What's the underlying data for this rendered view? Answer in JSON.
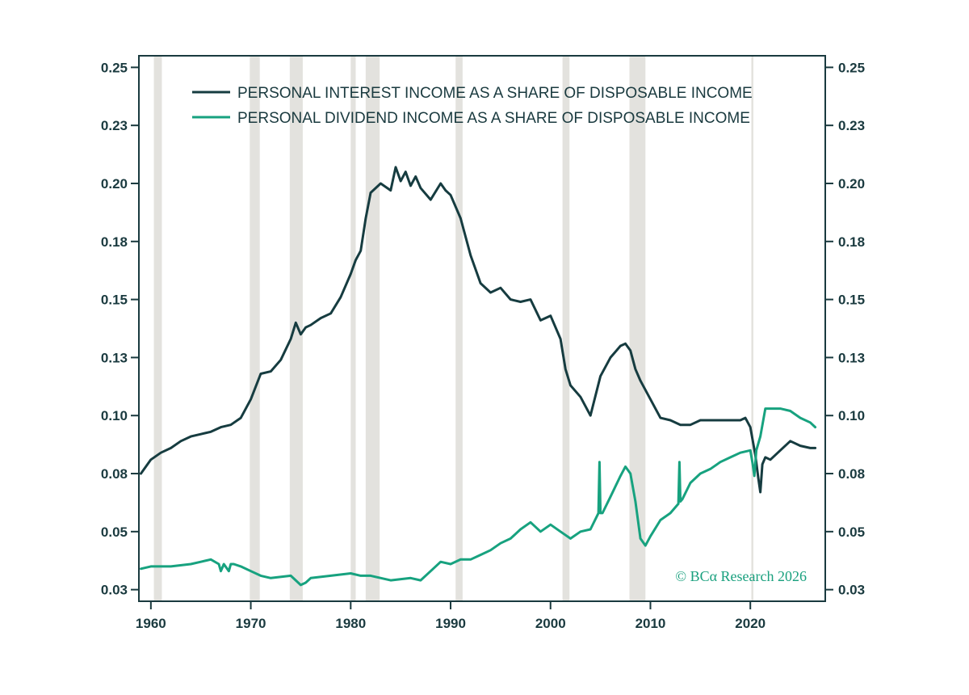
{
  "colors": {
    "interest": "#163c40",
    "dividend": "#17a27f",
    "recession": "#e3e2de",
    "frame": "#1a3a3f"
  },
  "credit": "© BCα Research 2026",
  "chart_data": {
    "type": "line",
    "x_range": [
      1958.8,
      2027.5
    ],
    "ylim": [
      0.025,
      0.26
    ],
    "x_ticks": [
      "1960",
      "1970",
      "1980",
      "1990",
      "2000",
      "2010",
      "2020"
    ],
    "x_tick_values": [
      1960,
      1970,
      1980,
      1990,
      2000,
      2010,
      2020
    ],
    "y_ticks": [
      "0.03",
      "0.05",
      "0.08",
      "0.10",
      "0.13",
      "0.15",
      "0.18",
      "0.20",
      "0.23",
      "0.25"
    ],
    "y_tick_values": [
      0.03,
      0.055,
      0.08,
      0.105,
      0.13,
      0.155,
      0.18,
      0.205,
      0.23,
      0.255
    ],
    "legend_position": "top",
    "recessions": [
      [
        1960.3,
        1961.1
      ],
      [
        1969.9,
        1970.9
      ],
      [
        1973.9,
        1975.2
      ],
      [
        1980.0,
        1980.5
      ],
      [
        1981.5,
        1982.9
      ],
      [
        1990.5,
        1991.2
      ],
      [
        2001.2,
        2001.9
      ],
      [
        2007.9,
        2009.5
      ],
      [
        2020.1,
        2020.3
      ]
    ],
    "series": [
      {
        "name": "PERSONAL INTEREST INCOME AS A SHARE OF DISPOSABLE INCOME",
        "color": "#163c40",
        "x": [
          1959.0,
          1960.0,
          1961.0,
          1962.0,
          1963.0,
          1964.0,
          1965.0,
          1966.0,
          1967.0,
          1968.0,
          1969.0,
          1970.0,
          1971.0,
          1972.0,
          1973.0,
          1974.0,
          1974.5,
          1975.0,
          1975.5,
          1976.0,
          1977.0,
          1978.0,
          1979.0,
          1980.0,
          1980.5,
          1981.0,
          1981.5,
          1982.0,
          1983.0,
          1984.0,
          1984.5,
          1985.0,
          1985.5,
          1986.0,
          1986.5,
          1987.0,
          1988.0,
          1989.0,
          1989.5,
          1990.0,
          1991.0,
          1992.0,
          1993.0,
          1994.0,
          1995.0,
          1996.0,
          1997.0,
          1998.0,
          1999.0,
          2000.0,
          2001.0,
          2001.5,
          2002.0,
          2003.0,
          2004.0,
          2005.0,
          2006.0,
          2007.0,
          2007.5,
          2008.0,
          2008.5,
          2009.0,
          2010.0,
          2011.0,
          2012.0,
          2013.0,
          2014.0,
          2015.0,
          2016.0,
          2017.0,
          2018.0,
          2019.0,
          2019.5,
          2020.0,
          2020.5,
          2020.8,
          2021.0,
          2021.2,
          2021.5,
          2022.0,
          2023.0,
          2024.0,
          2025.0,
          2026.0,
          2026.5
        ],
        "values": [
          0.08,
          0.086,
          0.089,
          0.091,
          0.094,
          0.096,
          0.097,
          0.098,
          0.1,
          0.101,
          0.104,
          0.112,
          0.123,
          0.124,
          0.129,
          0.138,
          0.145,
          0.14,
          0.143,
          0.144,
          0.147,
          0.149,
          0.156,
          0.166,
          0.172,
          0.176,
          0.19,
          0.201,
          0.205,
          0.202,
          0.212,
          0.206,
          0.21,
          0.204,
          0.208,
          0.203,
          0.198,
          0.205,
          0.202,
          0.2,
          0.19,
          0.174,
          0.162,
          0.158,
          0.16,
          0.155,
          0.154,
          0.155,
          0.146,
          0.148,
          0.138,
          0.125,
          0.118,
          0.113,
          0.105,
          0.122,
          0.13,
          0.135,
          0.136,
          0.133,
          0.125,
          0.12,
          0.112,
          0.104,
          0.103,
          0.101,
          0.101,
          0.103,
          0.103,
          0.103,
          0.103,
          0.103,
          0.104,
          0.1,
          0.088,
          0.078,
          0.072,
          0.084,
          0.087,
          0.086,
          0.09,
          0.094,
          0.092,
          0.091,
          0.091
        ]
      },
      {
        "name": "PERSONAL DIVIDEND INCOME AS A SHARE OF DISPOSABLE INCOME",
        "color": "#17a27f",
        "x": [
          1959.0,
          1960.0,
          1962.0,
          1964.0,
          1965.0,
          1966.0,
          1966.8,
          1967.0,
          1967.3,
          1967.8,
          1968.0,
          1968.3,
          1969.0,
          1970.0,
          1971.0,
          1972.0,
          1974.0,
          1975.0,
          1975.5,
          1976.0,
          1978.0,
          1980.0,
          1981.0,
          1982.0,
          1984.0,
          1986.0,
          1987.0,
          1988.0,
          1989.0,
          1990.0,
          1991.0,
          1992.0,
          1993.0,
          1994.0,
          1995.0,
          1996.0,
          1997.0,
          1998.0,
          1999.0,
          2000.0,
          2001.0,
          2002.0,
          2003.0,
          2004.0,
          2004.8,
          2004.9,
          2005.0,
          2005.2,
          2006.0,
          2007.0,
          2007.5,
          2008.0,
          2008.5,
          2009.0,
          2009.5,
          2010.0,
          2011.0,
          2012.0,
          2012.8,
          2012.9,
          2013.0,
          2013.2,
          2014.0,
          2015.0,
          2016.0,
          2017.0,
          2018.0,
          2019.0,
          2020.0,
          2020.2,
          2020.4,
          2020.6,
          2021.0,
          2021.5,
          2022.0,
          2023.0,
          2024.0,
          2025.0,
          2026.0,
          2026.5
        ],
        "values": [
          0.039,
          0.04,
          0.04,
          0.041,
          0.042,
          0.043,
          0.041,
          0.038,
          0.041,
          0.038,
          0.041,
          0.041,
          0.04,
          0.038,
          0.036,
          0.035,
          0.036,
          0.032,
          0.033,
          0.035,
          0.036,
          0.037,
          0.036,
          0.036,
          0.034,
          0.035,
          0.034,
          0.038,
          0.042,
          0.041,
          0.043,
          0.043,
          0.045,
          0.047,
          0.05,
          0.052,
          0.056,
          0.059,
          0.055,
          0.058,
          0.055,
          0.052,
          0.055,
          0.056,
          0.063,
          0.085,
          0.063,
          0.063,
          0.07,
          0.079,
          0.083,
          0.08,
          0.068,
          0.052,
          0.049,
          0.053,
          0.06,
          0.063,
          0.067,
          0.085,
          0.068,
          0.069,
          0.076,
          0.08,
          0.082,
          0.085,
          0.087,
          0.089,
          0.09,
          0.085,
          0.079,
          0.09,
          0.096,
          0.108,
          0.108,
          0.108,
          0.107,
          0.104,
          0.102,
          0.1
        ]
      }
    ]
  }
}
